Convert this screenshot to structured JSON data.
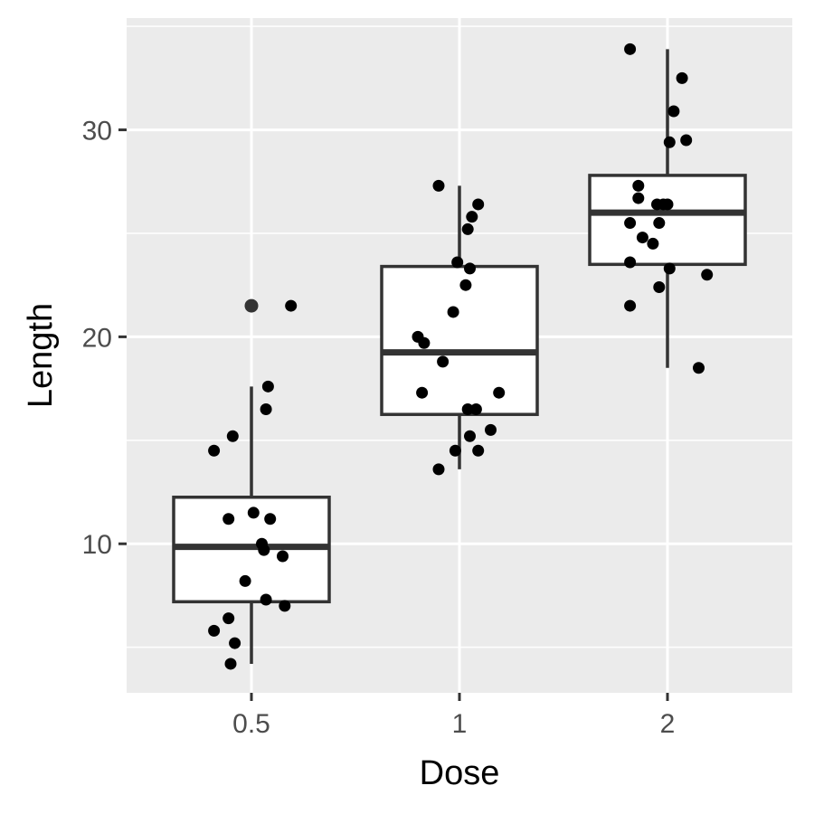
{
  "chart_data": {
    "type": "box",
    "xlabel": "Dose",
    "ylabel": "Length",
    "categories": [
      "0.5",
      "1",
      "2"
    ],
    "y_ticks": [
      10,
      20,
      30
    ],
    "ylim": [
      2.8,
      35.4
    ],
    "grid": true,
    "colors": {
      "panel_bg": "#ebebeb",
      "grid": "#ffffff",
      "box_stroke": "#333333",
      "box_fill": "#ffffff",
      "point": "#000000",
      "outlier": "#333333"
    },
    "boxes": [
      {
        "category": "0.5",
        "q1": 7.2,
        "median": 9.85,
        "q3": 12.25,
        "whisker_low": 4.2,
        "whisker_high": 17.6,
        "outliers": [
          21.5
        ]
      },
      {
        "category": "1",
        "q1": 16.25,
        "median": 19.25,
        "q3": 23.4,
        "whisker_low": 13.6,
        "whisker_high": 27.3,
        "outliers": []
      },
      {
        "category": "2",
        "q1": 23.5,
        "median": 26.0,
        "q3": 27.8,
        "whisker_low": 18.5,
        "whisker_high": 33.9,
        "outliers": []
      }
    ],
    "points": [
      {
        "category": "0.5",
        "jitter": -0.18,
        "value": 14.5
      },
      {
        "category": "0.5",
        "jitter": -0.09,
        "value": 15.2
      },
      {
        "category": "0.5",
        "jitter": 0.07,
        "value": 16.5
      },
      {
        "category": "0.5",
        "jitter": 0.08,
        "value": 17.6
      },
      {
        "category": "0.5",
        "jitter": 0.19,
        "value": 21.5
      },
      {
        "category": "0.5",
        "jitter": -0.11,
        "value": 11.2
      },
      {
        "category": "0.5",
        "jitter": 0.01,
        "value": 11.5
      },
      {
        "category": "0.5",
        "jitter": 0.09,
        "value": 11.2
      },
      {
        "category": "0.5",
        "jitter": 0.05,
        "value": 10.0
      },
      {
        "category": "0.5",
        "jitter": 0.06,
        "value": 9.7
      },
      {
        "category": "0.5",
        "jitter": 0.15,
        "value": 9.4
      },
      {
        "category": "0.5",
        "jitter": -0.03,
        "value": 8.2
      },
      {
        "category": "0.5",
        "jitter": 0.07,
        "value": 7.3
      },
      {
        "category": "0.5",
        "jitter": 0.16,
        "value": 7.0
      },
      {
        "category": "0.5",
        "jitter": -0.11,
        "value": 6.4
      },
      {
        "category": "0.5",
        "jitter": -0.18,
        "value": 5.8
      },
      {
        "category": "0.5",
        "jitter": -0.08,
        "value": 5.2
      },
      {
        "category": "0.5",
        "jitter": -0.1,
        "value": 4.2
      },
      {
        "category": "1",
        "jitter": -0.1,
        "value": 27.3
      },
      {
        "category": "1",
        "jitter": 0.09,
        "value": 26.4
      },
      {
        "category": "1",
        "jitter": 0.06,
        "value": 25.8
      },
      {
        "category": "1",
        "jitter": 0.04,
        "value": 25.2
      },
      {
        "category": "1",
        "jitter": -0.01,
        "value": 23.6
      },
      {
        "category": "1",
        "jitter": 0.05,
        "value": 23.3
      },
      {
        "category": "1",
        "jitter": 0.03,
        "value": 22.5
      },
      {
        "category": "1",
        "jitter": -0.03,
        "value": 21.2
      },
      {
        "category": "1",
        "jitter": -0.2,
        "value": 20.0
      },
      {
        "category": "1",
        "jitter": -0.17,
        "value": 19.7
      },
      {
        "category": "1",
        "jitter": -0.08,
        "value": 18.8
      },
      {
        "category": "1",
        "jitter": -0.18,
        "value": 17.3
      },
      {
        "category": "1",
        "jitter": 0.19,
        "value": 17.3
      },
      {
        "category": "1",
        "jitter": 0.04,
        "value": 16.5
      },
      {
        "category": "1",
        "jitter": 0.08,
        "value": 16.5
      },
      {
        "category": "1",
        "jitter": 0.15,
        "value": 15.5
      },
      {
        "category": "1",
        "jitter": 0.05,
        "value": 15.2
      },
      {
        "category": "1",
        "jitter": -0.02,
        "value": 14.5
      },
      {
        "category": "1",
        "jitter": 0.09,
        "value": 14.5
      },
      {
        "category": "1",
        "jitter": -0.1,
        "value": 13.6
      },
      {
        "category": "2",
        "jitter": -0.18,
        "value": 33.9
      },
      {
        "category": "2",
        "jitter": 0.07,
        "value": 32.5
      },
      {
        "category": "2",
        "jitter": 0.03,
        "value": 30.9
      },
      {
        "category": "2",
        "jitter": 0.01,
        "value": 29.4
      },
      {
        "category": "2",
        "jitter": 0.09,
        "value": 29.5
      },
      {
        "category": "2",
        "jitter": -0.14,
        "value": 27.3
      },
      {
        "category": "2",
        "jitter": -0.14,
        "value": 26.7
      },
      {
        "category": "2",
        "jitter": -0.05,
        "value": 26.4
      },
      {
        "category": "2",
        "jitter": -0.02,
        "value": 26.4
      },
      {
        "category": "2",
        "jitter": 0.0,
        "value": 26.4
      },
      {
        "category": "2",
        "jitter": -0.18,
        "value": 25.5
      },
      {
        "category": "2",
        "jitter": -0.04,
        "value": 25.5
      },
      {
        "category": "2",
        "jitter": -0.12,
        "value": 24.8
      },
      {
        "category": "2",
        "jitter": -0.07,
        "value": 24.5
      },
      {
        "category": "2",
        "jitter": -0.18,
        "value": 23.6
      },
      {
        "category": "2",
        "jitter": 0.01,
        "value": 23.3
      },
      {
        "category": "2",
        "jitter": 0.19,
        "value": 23.0
      },
      {
        "category": "2",
        "jitter": -0.04,
        "value": 22.4
      },
      {
        "category": "2",
        "jitter": -0.18,
        "value": 21.5
      },
      {
        "category": "2",
        "jitter": 0.15,
        "value": 18.5
      }
    ]
  }
}
